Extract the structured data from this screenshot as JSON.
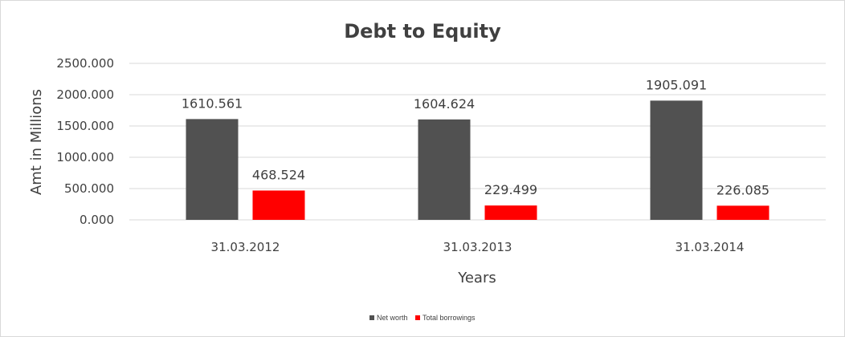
{
  "chart_data": {
    "type": "bar",
    "title": "Debt to Equity",
    "xlabel": "Years",
    "ylabel": "Amt in Millions",
    "categories": [
      "31.03.2012",
      "31.03.2013",
      "31.03.2014"
    ],
    "series": [
      {
        "name": "Net worth",
        "color": "#515151",
        "values": [
          1610.561,
          1604.624,
          1905.091
        ]
      },
      {
        "name": "Total borrowings",
        "color": "#ff0000",
        "values": [
          468.524,
          229.499,
          226.085
        ]
      }
    ],
    "ylim": [
      0,
      2500
    ],
    "yticks": [
      "0.000",
      "500.000",
      "1000.000",
      "1500.000",
      "2000.000",
      "2500.000"
    ],
    "data_labels": [
      [
        "1610.561",
        "1604.624",
        "1905.091"
      ],
      [
        "468.524",
        "229.499",
        "226.085"
      ]
    ],
    "grid": true,
    "legend_position": "bottom"
  }
}
